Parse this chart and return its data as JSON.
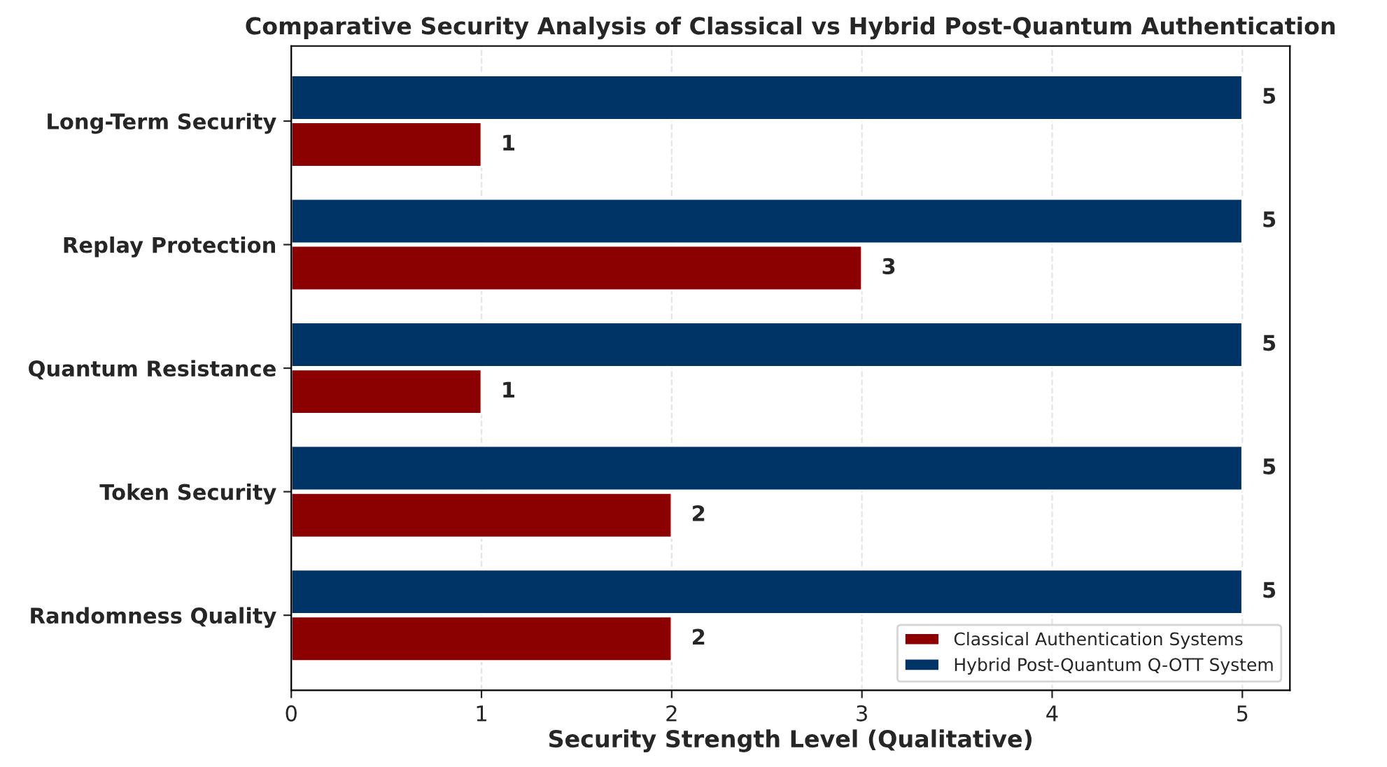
{
  "chart_data": {
    "type": "bar",
    "orientation": "horizontal",
    "title": "Comparative Security Analysis of Classical vs Hybrid Post-Quantum Authentication",
    "xlabel": "Security Strength Level (Qualitative)",
    "categories": [
      "Long-Term Security",
      "Replay Protection",
      "Quantum Resistance",
      "Token Security",
      "Randomness Quality"
    ],
    "series": [
      {
        "name": "Classical Authentication Systems",
        "color": "#8b0000",
        "values": [
          1,
          3,
          1,
          2,
          2
        ]
      },
      {
        "name": "Hybrid Post-Quantum Q-OTT System",
        "color": "#003366",
        "values": [
          5,
          5,
          5,
          5,
          5
        ]
      }
    ],
    "xlim": [
      0,
      5.25
    ],
    "xticks": [
      0,
      1,
      2,
      3,
      4,
      5
    ],
    "grid": "x",
    "legend": "bottom right",
    "data_labels": true
  }
}
